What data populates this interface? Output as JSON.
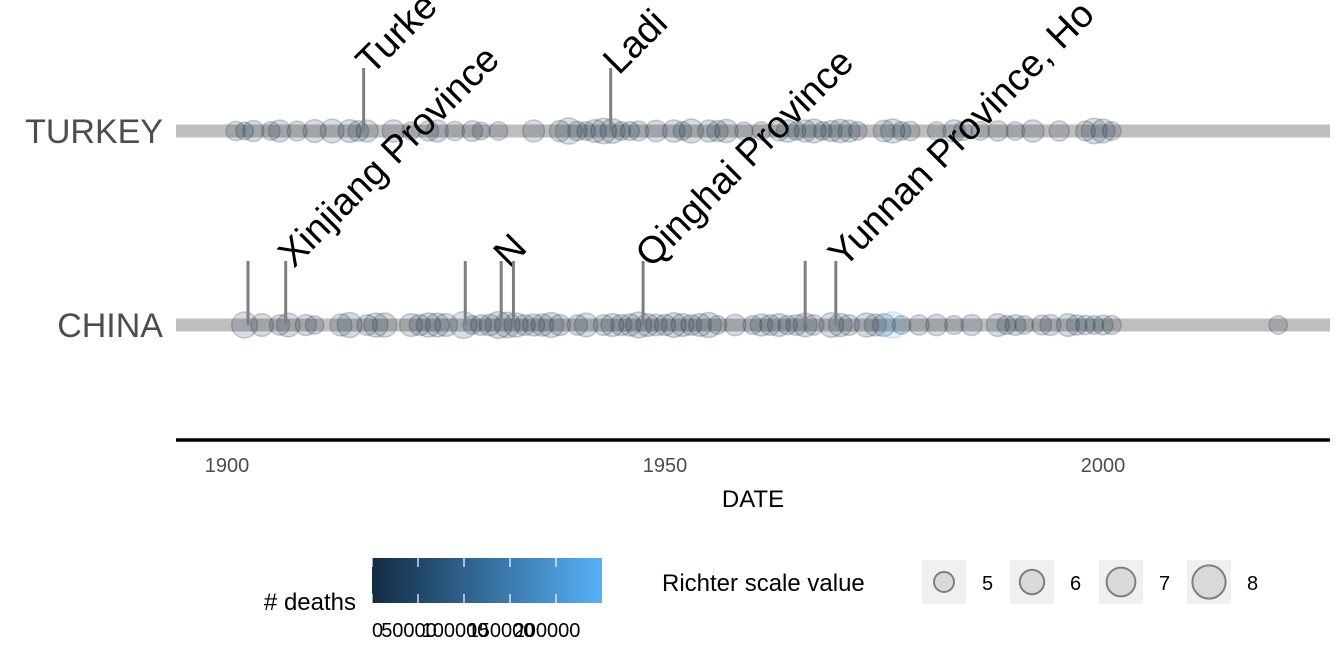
{
  "chart_data": {
    "type": "scatter",
    "xlabel": "DATE",
    "x_ticks": [
      1900,
      1950,
      2000
    ],
    "xlim": [
      1895,
      2026
    ],
    "categories": [
      "CHINA",
      "TURKEY"
    ],
    "annotations": [
      {
        "category": "TURKEY",
        "x": 1915.6,
        "label": "Turke"
      },
      {
        "category": "TURKEY",
        "x": 1943.8,
        "label": "Ladi"
      },
      {
        "category": "CHINA",
        "x": 1902.4,
        "label": ""
      },
      {
        "category": "CHINA",
        "x": 1906.7,
        "label": "Xinjiang Province"
      },
      {
        "category": "CHINA",
        "x": 1927.2,
        "label": ""
      },
      {
        "category": "CHINA",
        "x": 1931.3,
        "label": "N"
      },
      {
        "category": "CHINA",
        "x": 1932.7,
        "label": ""
      },
      {
        "category": "CHINA",
        "x": 1947.5,
        "label": "Qinghai Province"
      },
      {
        "category": "CHINA",
        "x": 1966.0,
        "label": ""
      },
      {
        "category": "CHINA",
        "x": 1969.5,
        "label": "Yunnan Province, Ho"
      }
    ],
    "series": [
      {
        "category": "TURKEY",
        "points": [
          [
            1901,
            6.2,
            0
          ],
          [
            1902,
            5.8,
            100
          ],
          [
            1903,
            6.6,
            3500
          ],
          [
            1905,
            6.0,
            0
          ],
          [
            1906,
            6.8,
            0
          ],
          [
            1908,
            6.3,
            0
          ],
          [
            1910,
            7.0,
            0
          ],
          [
            1912,
            7.2,
            2800
          ],
          [
            1914,
            7.0,
            0
          ],
          [
            1915,
            6.5,
            500
          ],
          [
            1916,
            6.8,
            0
          ],
          [
            1919,
            6.9,
            0
          ],
          [
            1921,
            5.9,
            0
          ],
          [
            1923,
            6.4,
            0
          ],
          [
            1924,
            6.8,
            60
          ],
          [
            1926,
            6.2,
            0
          ],
          [
            1928,
            6.5,
            50
          ],
          [
            1929,
            5.8,
            0
          ],
          [
            1931,
            6.0,
            0
          ],
          [
            1935,
            6.8,
            0
          ],
          [
            1938,
            6.6,
            200
          ],
          [
            1939,
            7.8,
            32700
          ],
          [
            1940,
            6.2,
            0
          ],
          [
            1941,
            6.0,
            430
          ],
          [
            1942,
            7.0,
            3000
          ],
          [
            1943,
            7.6,
            4000
          ],
          [
            1944,
            7.4,
            3960
          ],
          [
            1945,
            6.0,
            0
          ],
          [
            1946,
            6.1,
            0
          ],
          [
            1947,
            6.3,
            0
          ],
          [
            1949,
            6.7,
            450
          ],
          [
            1951,
            6.9,
            0
          ],
          [
            1952,
            6.0,
            0
          ],
          [
            1953,
            7.3,
            1200
          ],
          [
            1955,
            6.8,
            0
          ],
          [
            1956,
            6.6,
            0
          ],
          [
            1957,
            7.1,
            1000
          ],
          [
            1959,
            5.9,
            0
          ],
          [
            1961,
            6.0,
            0
          ],
          [
            1963,
            6.3,
            0
          ],
          [
            1964,
            6.9,
            0
          ],
          [
            1965,
            6.0,
            0
          ],
          [
            1966,
            6.8,
            2400
          ],
          [
            1967,
            7.2,
            170
          ],
          [
            1968,
            6.0,
            0
          ],
          [
            1969,
            6.6,
            0
          ],
          [
            1970,
            7.1,
            1100
          ],
          [
            1971,
            6.8,
            1000
          ],
          [
            1972,
            6.0,
            0
          ],
          [
            1975,
            6.7,
            2400
          ],
          [
            1976,
            7.3,
            4000
          ],
          [
            1977,
            6.0,
            0
          ],
          [
            1978,
            6.2,
            0
          ],
          [
            1981,
            6.0,
            0
          ],
          [
            1983,
            6.9,
            1340
          ],
          [
            1984,
            6.1,
            0
          ],
          [
            1986,
            6.0,
            0
          ],
          [
            1988,
            6.4,
            0
          ],
          [
            1990,
            6.0,
            0
          ],
          [
            1992,
            6.9,
            650
          ],
          [
            1995,
            6.4,
            0
          ],
          [
            1998,
            6.3,
            150
          ],
          [
            1999,
            7.6,
            17100
          ],
          [
            2000,
            7.2,
            890
          ],
          [
            2001,
            6.0,
            0
          ]
        ]
      },
      {
        "category": "CHINA",
        "points": [
          [
            1902,
            7.7,
            10000
          ],
          [
            1904,
            7.0,
            0
          ],
          [
            1906,
            6.4,
            0
          ],
          [
            1907,
            7.2,
            0
          ],
          [
            1909,
            6.6,
            0
          ],
          [
            1910,
            6.0,
            0
          ],
          [
            1913,
            6.8,
            0
          ],
          [
            1914,
            7.5,
            0
          ],
          [
            1916,
            6.5,
            0
          ],
          [
            1917,
            7.3,
            0
          ],
          [
            1918,
            7.3,
            0
          ],
          [
            1921,
            7.0,
            0
          ],
          [
            1922,
            6.6,
            0
          ],
          [
            1923,
            7.3,
            0
          ],
          [
            1924,
            7.2,
            0
          ],
          [
            1925,
            7.0,
            5000
          ],
          [
            1927,
            7.9,
            40900
          ],
          [
            1928,
            6.0,
            0
          ],
          [
            1929,
            6.5,
            0
          ],
          [
            1930,
            6.7,
            0
          ],
          [
            1931,
            7.9,
            10000
          ],
          [
            1932,
            7.6,
            275
          ],
          [
            1933,
            7.3,
            9300
          ],
          [
            1934,
            6.5,
            0
          ],
          [
            1935,
            6.8,
            0
          ],
          [
            1936,
            6.9,
            0
          ],
          [
            1937,
            7.5,
            0
          ],
          [
            1938,
            6.6,
            0
          ],
          [
            1940,
            6.4,
            0
          ],
          [
            1941,
            7.2,
            0
          ],
          [
            1943,
            6.5,
            0
          ],
          [
            1944,
            7.0,
            0
          ],
          [
            1945,
            6.6,
            0
          ],
          [
            1946,
            6.8,
            0
          ],
          [
            1947,
            7.7,
            0
          ],
          [
            1948,
            7.0,
            0
          ],
          [
            1949,
            6.7,
            0
          ],
          [
            1950,
            6.6,
            0
          ],
          [
            1951,
            7.4,
            0
          ],
          [
            1952,
            7.0,
            0
          ],
          [
            1953,
            6.5,
            0
          ],
          [
            1954,
            7.0,
            0
          ],
          [
            1955,
            7.5,
            0
          ],
          [
            1956,
            6.0,
            0
          ],
          [
            1958,
            6.7,
            0
          ],
          [
            1960,
            6.1,
            0
          ],
          [
            1961,
            6.8,
            0
          ],
          [
            1962,
            6.5,
            0
          ],
          [
            1963,
            7.0,
            0
          ],
          [
            1964,
            6.2,
            0
          ],
          [
            1965,
            6.5,
            0
          ],
          [
            1966,
            7.2,
            8064
          ],
          [
            1967,
            6.4,
            0
          ],
          [
            1969,
            7.4,
            10000
          ],
          [
            1970,
            7.1,
            10000
          ],
          [
            1971,
            6.5,
            0
          ],
          [
            1973,
            7.3,
            2200
          ],
          [
            1974,
            6.8,
            1600
          ],
          [
            1975,
            7.0,
            2000
          ],
          [
            1976,
            7.8,
            242000
          ],
          [
            1977,
            6.0,
            0
          ],
          [
            1979,
            6.4,
            0
          ],
          [
            1981,
            6.7,
            0
          ],
          [
            1983,
            6.1,
            0
          ],
          [
            1985,
            6.6,
            0
          ],
          [
            1988,
            7.0,
            938
          ],
          [
            1989,
            6.1,
            0
          ],
          [
            1990,
            6.5,
            0
          ],
          [
            1991,
            6.0,
            0
          ],
          [
            1993,
            6.3,
            0
          ],
          [
            1994,
            6.6,
            0
          ],
          [
            1996,
            7.0,
            322
          ],
          [
            1997,
            6.4,
            0
          ],
          [
            1998,
            6.2,
            0
          ],
          [
            1999,
            6.0,
            0
          ],
          [
            2000,
            6.3,
            0
          ],
          [
            2001,
            6.1,
            0
          ],
          [
            2020,
            6.0,
            0
          ]
        ]
      }
    ],
    "legend": {
      "deaths": {
        "title": "# deaths",
        "range": [
          0,
          250000
        ],
        "labels": [
          "0",
          "50000",
          "100000",
          "150000",
          "200000"
        ],
        "values": [
          0,
          50000,
          100000,
          150000,
          200000
        ],
        "colors": [
          "#132B43",
          "#56B1F7"
        ]
      },
      "richter": {
        "title": "Richter scale value",
        "values": [
          5,
          6,
          7,
          8
        ],
        "labels": [
          "5",
          "6",
          "7",
          "8"
        ]
      }
    },
    "colors": {
      "timeline": "#bebebe",
      "stem": "#7f7f7f",
      "axis": "#000000"
    }
  }
}
